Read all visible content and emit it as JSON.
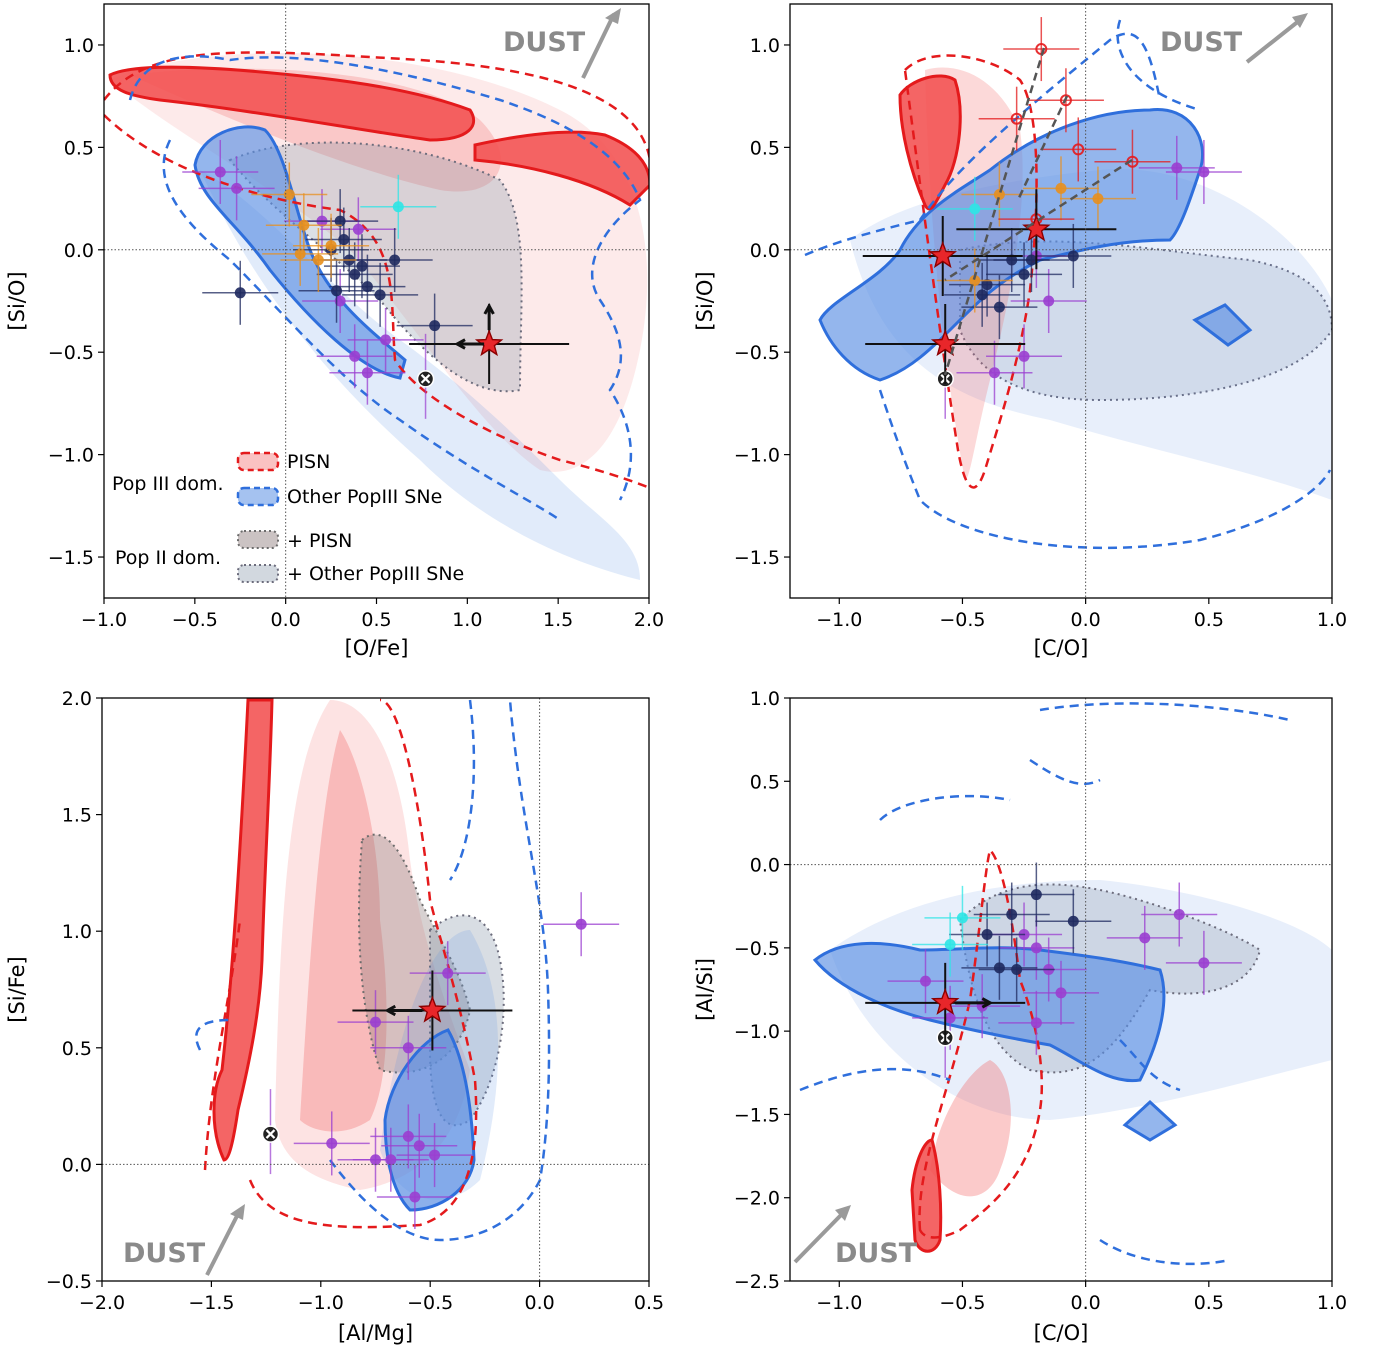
{
  "colors": {
    "pisn_red": "#e41a1c",
    "pisn_fill": "#f25050",
    "other_blue": "#2f6fdc",
    "other_fill": "#5b8fe3",
    "pop2_pisn_grey": "#8c7b7b",
    "pop2_other_grey": "#7f8ea3",
    "obs_purple": "#9b3fd1",
    "obs_navy": "#1f2a60",
    "obs_orange": "#e8901e",
    "obs_cyan": "#2ee6e6",
    "dust_grey": "#9a9a9a",
    "star_red": "#e8262a"
  },
  "legend": {
    "group_pop3": "Pop III dom.",
    "group_pop2": "Pop II dom.",
    "pisn": "PISN",
    "other": "Other PopIII SNe",
    "pop2_pisn": "+ PISN",
    "pop2_other": "+ Other PopIII SNe"
  },
  "chart_data": [
    {
      "id": "p1",
      "type": "scatter",
      "title": "",
      "xlabel": "[O/Fe]",
      "ylabel": "[Si/O]",
      "xlim": [
        -1.0,
        2.0
      ],
      "ylim": [
        -1.7,
        1.2
      ],
      "xticks": [
        "-1.0",
        "-0.5",
        "0.0",
        "0.5",
        "1.0",
        "1.5",
        "2.0"
      ],
      "yticks": [
        "-1.5",
        "-1.0",
        "-0.5",
        "0.0",
        "0.5",
        "1.0"
      ],
      "dust_label": "DUST",
      "star_point": {
        "x": 1.12,
        "y": -0.46,
        "upper_limit_arrows": [
          "left",
          "up"
        ]
      },
      "cross_point": {
        "x": 0.77,
        "y": -0.63
      },
      "series": [
        {
          "name": "Observed (purple)",
          "color": "obs_purple",
          "points": [
            [
              -0.36,
              0.38
            ],
            [
              -0.27,
              0.3
            ],
            [
              0.2,
              0.14
            ],
            [
              0.3,
              -0.25
            ],
            [
              0.4,
              0.1
            ],
            [
              0.38,
              -0.52
            ],
            [
              0.45,
              -0.6
            ],
            [
              0.55,
              -0.44
            ]
          ]
        },
        {
          "name": "Observed (navy)",
          "color": "obs_navy",
          "points": [
            [
              -0.25,
              -0.21
            ],
            [
              0.3,
              0.14
            ],
            [
              0.35,
              -0.05
            ],
            [
              0.38,
              -0.12
            ],
            [
              0.42,
              -0.08
            ],
            [
              0.28,
              -0.2
            ],
            [
              0.45,
              -0.18
            ],
            [
              0.52,
              -0.22
            ],
            [
              0.6,
              -0.05
            ],
            [
              0.82,
              -0.37
            ],
            [
              0.32,
              0.05
            ],
            [
              0.25,
              0.0
            ]
          ]
        },
        {
          "name": "Observed (orange)",
          "color": "obs_orange",
          "points": [
            [
              0.02,
              0.27
            ],
            [
              0.1,
              0.12
            ],
            [
              0.18,
              -0.05
            ],
            [
              0.25,
              0.02
            ],
            [
              0.08,
              -0.02
            ]
          ]
        },
        {
          "name": "Observed (cyan)",
          "color": "obs_cyan",
          "points": [
            [
              0.62,
              0.21
            ]
          ]
        }
      ]
    },
    {
      "id": "p2",
      "type": "scatter",
      "title": "",
      "xlabel": "[C/O]",
      "ylabel": "[Si/O]",
      "xlim": [
        -1.2,
        1.0
      ],
      "ylim": [
        -1.7,
        1.2
      ],
      "xticks": [
        "-1.0",
        "-0.5",
        "0.0",
        "0.5",
        "1.0"
      ],
      "yticks": [
        "-1.5",
        "-1.0",
        "-0.5",
        "0.0",
        "0.5",
        "1.0"
      ],
      "dust_label": "DUST",
      "star_points": [
        {
          "x": -0.58,
          "y": -0.03
        },
        {
          "x": -0.2,
          "y": 0.1
        },
        {
          "x": -0.57,
          "y": -0.46
        }
      ],
      "cross_point": {
        "x": -0.57,
        "y": -0.63
      },
      "series": [
        {
          "name": "Observed (purple)",
          "color": "obs_purple",
          "points": [
            [
              -0.2,
              -0.03
            ],
            [
              -0.15,
              -0.25
            ],
            [
              0.37,
              0.4
            ],
            [
              0.48,
              0.38
            ],
            [
              -0.37,
              -0.6
            ],
            [
              -0.25,
              -0.52
            ]
          ]
        },
        {
          "name": "Observed (navy)",
          "color": "obs_navy",
          "points": [
            [
              -0.4,
              -0.17
            ],
            [
              -0.3,
              -0.05
            ],
            [
              -0.25,
              -0.12
            ],
            [
              -0.05,
              -0.03
            ],
            [
              -0.42,
              -0.22
            ],
            [
              -0.35,
              -0.28
            ],
            [
              -0.22,
              -0.05
            ]
          ]
        },
        {
          "name": "Observed (orange)",
          "color": "obs_orange",
          "points": [
            [
              -0.45,
              -0.15
            ],
            [
              -0.35,
              0.27
            ],
            [
              -0.1,
              0.3
            ],
            [
              0.05,
              0.25
            ]
          ]
        },
        {
          "name": "Observed (cyan)",
          "color": "obs_cyan",
          "points": [
            [
              -0.45,
              0.2
            ]
          ]
        },
        {
          "name": "Observed (light red)",
          "color": "pisn_red",
          "points": [
            [
              -0.18,
              0.98
            ],
            [
              -0.08,
              0.73
            ],
            [
              -0.28,
              0.64
            ],
            [
              -0.03,
              0.49
            ],
            [
              0.19,
              0.43
            ],
            [
              -0.2,
              0.15
            ]
          ]
        }
      ]
    },
    {
      "id": "p3",
      "type": "scatter",
      "title": "",
      "xlabel": "[Al/Mg]",
      "ylabel": "[Si/Fe]",
      "xlim": [
        -2.0,
        0.5
      ],
      "ylim": [
        -0.5,
        2.0
      ],
      "xticks": [
        "-2.0",
        "-1.5",
        "-1.0",
        "-0.5",
        "0.0",
        "0.5"
      ],
      "yticks": [
        "-0.5",
        "0.0",
        "0.5",
        "1.0",
        "1.5",
        "2.0"
      ],
      "dust_label": "DUST",
      "star_point": {
        "x": -0.49,
        "y": 0.66
      },
      "cross_point": {
        "x": -1.23,
        "y": 0.13
      },
      "series": [
        {
          "name": "Observed (purple)",
          "color": "obs_purple",
          "points": [
            [
              0.19,
              1.03
            ],
            [
              -0.42,
              0.82
            ],
            [
              -0.75,
              0.61
            ],
            [
              -0.6,
              0.5
            ],
            [
              -0.95,
              0.09
            ],
            [
              -0.75,
              0.02
            ],
            [
              -0.6,
              0.12
            ],
            [
              -0.55,
              0.08
            ],
            [
              -0.48,
              0.04
            ],
            [
              -0.57,
              -0.14
            ],
            [
              -0.68,
              0.02
            ]
          ]
        }
      ]
    },
    {
      "id": "p4",
      "type": "scatter",
      "title": "",
      "xlabel": "[C/O]",
      "ylabel": "[Al/Si]",
      "xlim": [
        -1.2,
        1.0
      ],
      "ylim": [
        -2.5,
        1.0
      ],
      "xticks": [
        "-1.0",
        "-0.5",
        "0.0",
        "0.5",
        "1.0"
      ],
      "yticks": [
        "-2.5",
        "-2.0",
        "-1.5",
        "-1.0",
        "-0.5",
        "0.0",
        "0.5",
        "1.0"
      ],
      "dust_label": "DUST",
      "star_point": {
        "x": -0.57,
        "y": -0.83
      },
      "cross_point": {
        "x": -0.57,
        "y": -1.04
      },
      "series": [
        {
          "name": "Observed (purple)",
          "color": "obs_purple",
          "points": [
            [
              -0.65,
              -0.7
            ],
            [
              -0.55,
              -0.92
            ],
            [
              -0.25,
              -0.42
            ],
            [
              -0.2,
              -0.5
            ],
            [
              -0.15,
              -0.63
            ],
            [
              -0.1,
              -0.77
            ],
            [
              -0.2,
              -0.95
            ],
            [
              0.24,
              -0.44
            ],
            [
              0.38,
              -0.3
            ],
            [
              0.48,
              -0.59
            ],
            [
              -0.42,
              -0.85
            ]
          ]
        },
        {
          "name": "Observed (navy)",
          "color": "obs_navy",
          "points": [
            [
              -0.4,
              -0.42
            ],
            [
              -0.3,
              -0.3
            ],
            [
              -0.2,
              -0.18
            ],
            [
              -0.05,
              -0.34
            ],
            [
              -0.35,
              -0.62
            ],
            [
              -0.28,
              -0.63
            ]
          ]
        },
        {
          "name": "Observed (cyan)",
          "color": "obs_cyan",
          "points": [
            [
              -0.5,
              -0.32
            ],
            [
              -0.55,
              -0.48
            ]
          ]
        }
      ]
    }
  ]
}
